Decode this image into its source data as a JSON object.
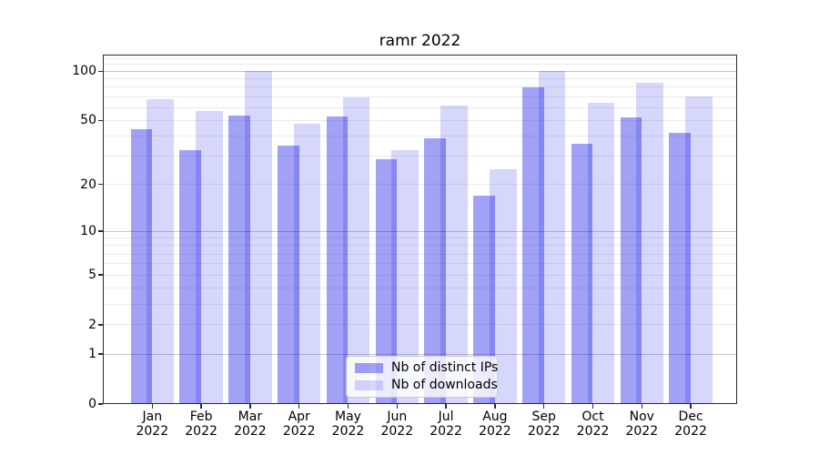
{
  "chart_data": {
    "type": "bar",
    "title": "ramr 2022",
    "xlabel": "",
    "ylabel": "",
    "categories": [
      "Jan",
      "Feb",
      "Mar",
      "Apr",
      "May",
      "Jun",
      "Jul",
      "Aug",
      "Sep",
      "Oct",
      "Nov",
      "Dec"
    ],
    "year": "2022",
    "series": [
      {
        "name": "Nb of distinct IPs",
        "color": "rgba(0,0,230,0.37)",
        "values": [
          44,
          33,
          54,
          35,
          53,
          29,
          39,
          17,
          80,
          36,
          52,
          42
        ]
      },
      {
        "name": "Nb of downloads",
        "color": "rgba(0,0,230,0.155)",
        "values": [
          68,
          57,
          100,
          48,
          69,
          33,
          62,
          25,
          100,
          64,
          85,
          70
        ]
      }
    ],
    "yscale": "log1p",
    "ylim": [
      0,
      126
    ],
    "yticks": [
      0,
      1,
      2,
      5,
      10,
      20,
      50,
      100
    ],
    "grid": {
      "major": [
        1,
        10,
        100
      ],
      "minor": [
        2,
        3,
        4,
        5,
        6,
        7,
        8,
        9,
        20,
        30,
        40,
        50,
        60,
        70,
        80,
        90,
        110,
        120
      ]
    },
    "legend_position": "lower-center-inside"
  },
  "colors": {
    "spine": "#2b2b2b",
    "grid_major": "#c6c6c6",
    "grid_minor": "#ebebeb",
    "legend_border": "#c9c9c9",
    "legend_bg": "rgba(255,255,255,0.8)",
    "text": "#000000"
  }
}
